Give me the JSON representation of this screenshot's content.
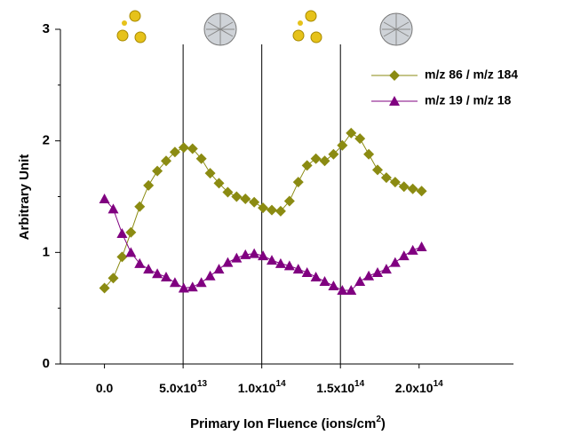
{
  "chart_data": {
    "type": "line",
    "x_label": {
      "text": "Primary Ion Fluence (ions/cm",
      "superscript": "2",
      "suffix": ")"
    },
    "y_label": "Arbitrary Unit",
    "xlim": [
      -28000000000000.0,
      260000000000000.0
    ],
    "ylim": [
      0,
      3
    ],
    "xticks": [
      {
        "value": 0,
        "label": "0.0"
      },
      {
        "value": 50000000000000.0,
        "label": "5.0x10",
        "exponent": "13"
      },
      {
        "value": 100000000000000.0,
        "label": "1.0x10",
        "exponent": "14"
      },
      {
        "value": 150000000000000.0,
        "label": "1.5x10",
        "exponent": "14"
      },
      {
        "value": 200000000000000.0,
        "label": "2.0x10",
        "exponent": "14"
      }
    ],
    "yticks": [
      0,
      1,
      2,
      3
    ],
    "minor_yticks": [
      0.5,
      1.5,
      2.5
    ],
    "vlines": [
      50000000000000.0,
      100000000000000.0,
      150000000000000.0
    ],
    "x": [
      0,
      5600000000000.0,
      11200000000000.0,
      16800000000000.0,
      22400000000000.0,
      28000000000000.0,
      33600000000000.0,
      39200000000000.0,
      44800000000000.0,
      50400000000000.0,
      56000000000000.0,
      61600000000000.0,
      67200000000000.0,
      72800000000000.0,
      78400000000000.0,
      84000000000000.0,
      89600000000000.0,
      95200000000000.0,
      100800000000000.0,
      106400000000000.0,
      112000000000000.0,
      117600000000000.0,
      123200000000000.0,
      128800000000000.0,
      134400000000000.0,
      140000000000000.0,
      145600000000000.0,
      151200000000000.0,
      156800000000000.0,
      162400000000000.0,
      168000000000000.0,
      173600000000000.0,
      179200000000000.0,
      184800000000000.0,
      190400000000000.0,
      196000000000000.0,
      201600000000000.0
    ],
    "series": [
      {
        "name": "m/z 86 / m/z 184",
        "color": "#8b8b12",
        "marker": "diamond",
        "values": [
          0.68,
          0.77,
          0.96,
          1.18,
          1.41,
          1.6,
          1.73,
          1.82,
          1.9,
          1.94,
          1.93,
          1.84,
          1.71,
          1.62,
          1.54,
          1.5,
          1.48,
          1.45,
          1.4,
          1.38,
          1.37,
          1.46,
          1.63,
          1.78,
          1.84,
          1.82,
          1.88,
          1.96,
          2.07,
          2.02,
          1.88,
          1.74,
          1.67,
          1.63,
          1.59,
          1.57,
          1.55
        ]
      },
      {
        "name": "m/z 19 / m/z 18",
        "color": "#800080",
        "marker": "triangle",
        "values": [
          1.48,
          1.39,
          1.17,
          1.0,
          0.9,
          0.85,
          0.81,
          0.78,
          0.73,
          0.68,
          0.69,
          0.73,
          0.79,
          0.85,
          0.91,
          0.95,
          0.98,
          0.99,
          0.97,
          0.93,
          0.9,
          0.88,
          0.85,
          0.82,
          0.78,
          0.74,
          0.7,
          0.66,
          0.66,
          0.74,
          0.79,
          0.82,
          0.85,
          0.91,
          0.97,
          1.02,
          1.05
        ]
      }
    ]
  }
}
